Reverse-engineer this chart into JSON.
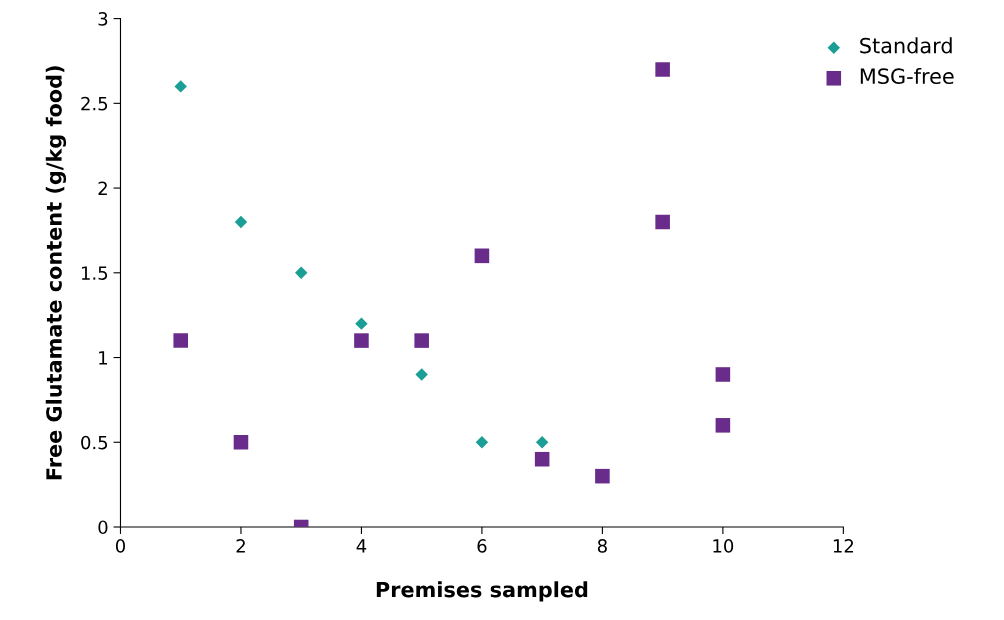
{
  "chart_data": {
    "type": "scatter",
    "xlabel": "Premises sampled",
    "ylabel": "Free Glutamate content (g/kg food)",
    "xlim": [
      0,
      12
    ],
    "xticks": [
      0,
      2,
      4,
      6,
      8,
      10,
      12
    ],
    "ylim": [
      0,
      3
    ],
    "yticks": [
      0,
      0.5,
      1,
      1.5,
      2,
      2.5,
      3
    ],
    "grid": false,
    "legend": "top right",
    "series": [
      {
        "name": "Standard",
        "color": "#1a9e96",
        "marker": "diamond",
        "x": [
          1,
          2,
          3,
          4,
          5,
          6,
          7
        ],
        "values": [
          2.6,
          1.8,
          1.5,
          1.2,
          0.9,
          0.5,
          0.5
        ]
      },
      {
        "name": "MSG-free",
        "color": "#6a2c8a",
        "marker": "square",
        "x": [
          1,
          2,
          3,
          4,
          5,
          6,
          7,
          8,
          9,
          9,
          10,
          10
        ],
        "values": [
          1.1,
          0.5,
          0,
          1.1,
          1.1,
          1.6,
          0.4,
          0.3,
          2.7,
          1.8,
          0.9,
          0.6
        ]
      }
    ]
  }
}
